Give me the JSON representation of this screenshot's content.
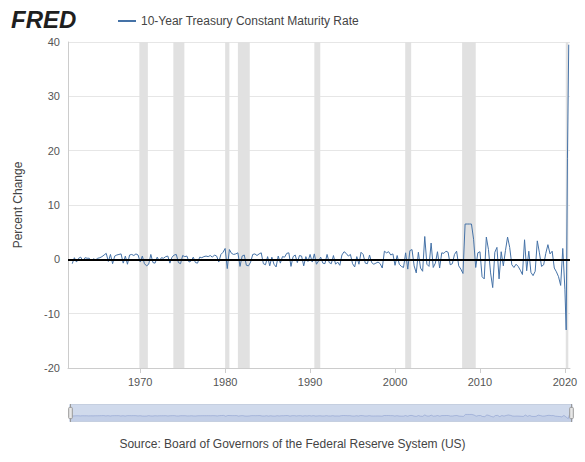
{
  "chart_data": {
    "type": "line",
    "title": "FRED",
    "source": "Source: Board of Governors of the Federal Reserve System (US)",
    "ylabel": "Percent Change",
    "series": [
      {
        "name": "10-Year Treasury Constant Maturity Rate",
        "color": "#4572a7",
        "x": [
          1962,
          1962.25,
          1962.5,
          1962.75,
          1963,
          1963.25,
          1963.5,
          1963.75,
          1964,
          1964.25,
          1964.5,
          1964.75,
          1965,
          1965.25,
          1965.5,
          1965.75,
          1966,
          1966.25,
          1966.5,
          1966.75,
          1967,
          1967.25,
          1967.5,
          1967.75,
          1968,
          1968.25,
          1968.5,
          1968.75,
          1969,
          1969.25,
          1969.5,
          1969.75,
          1970,
          1970.25,
          1970.5,
          1970.75,
          1971,
          1971.25,
          1971.5,
          1971.75,
          1972,
          1972.25,
          1972.5,
          1972.75,
          1973,
          1973.25,
          1973.5,
          1973.75,
          1974,
          1974.25,
          1974.5,
          1974.75,
          1975,
          1975.25,
          1975.5,
          1975.75,
          1976,
          1976.25,
          1976.5,
          1976.75,
          1977,
          1977.25,
          1977.5,
          1977.75,
          1978,
          1978.25,
          1978.5,
          1978.75,
          1979,
          1979.25,
          1979.5,
          1979.75,
          1980,
          1980.25,
          1980.5,
          1980.75,
          1981,
          1981.25,
          1981.5,
          1981.75,
          1982,
          1982.25,
          1982.5,
          1982.75,
          1983,
          1983.25,
          1983.5,
          1983.75,
          1984,
          1984.25,
          1984.5,
          1984.75,
          1985,
          1985.25,
          1985.5,
          1985.75,
          1986,
          1986.25,
          1986.5,
          1986.75,
          1987,
          1987.25,
          1987.5,
          1987.75,
          1988,
          1988.25,
          1988.5,
          1988.75,
          1989,
          1989.25,
          1989.5,
          1989.75,
          1990,
          1990.25,
          1990.5,
          1990.75,
          1991,
          1991.25,
          1991.5,
          1991.75,
          1992,
          1992.25,
          1992.5,
          1992.75,
          1993,
          1993.25,
          1993.5,
          1993.75,
          1994,
          1994.25,
          1994.5,
          1994.75,
          1995,
          1995.25,
          1995.5,
          1995.75,
          1996,
          1996.25,
          1996.5,
          1996.75,
          1997,
          1997.25,
          1997.5,
          1997.75,
          1998,
          1998.25,
          1998.5,
          1998.75,
          1999,
          1999.25,
          1999.5,
          1999.75,
          2000,
          2000.25,
          2000.5,
          2000.75,
          2001,
          2001.25,
          2001.5,
          2001.75,
          2002,
          2002.25,
          2002.5,
          2002.75,
          2003,
          2003.25,
          2003.5,
          2003.75,
          2004,
          2004.25,
          2004.5,
          2004.75,
          2005,
          2005.25,
          2005.5,
          2005.75,
          2006,
          2006.25,
          2006.5,
          2006.75,
          2007,
          2007.25,
          2007.5,
          2007.75,
          2008,
          2008.25,
          2008.5,
          2008.75,
          2009,
          2009.25,
          2009.5,
          2009.75,
          2010,
          2010.25,
          2010.5,
          2010.75,
          2011,
          2011.25,
          2011.5,
          2011.75,
          2012,
          2012.25,
          2012.5,
          2012.75,
          2013,
          2013.25,
          2013.5,
          2013.75,
          2014,
          2014.25,
          2014.5,
          2014.75,
          2015,
          2015.25,
          2015.5,
          2015.75,
          2016,
          2016.25,
          2016.5,
          2016.75,
          2017,
          2017.25,
          2017.5,
          2017.75,
          2018,
          2018.25,
          2018.5,
          2018.75,
          2019,
          2019.25,
          2019.5,
          2019.75,
          2020,
          2020.15,
          2020.3,
          2020.45
        ],
        "values": [
          -0.8,
          0.3,
          -0.5,
          0.2,
          0.4,
          -0.3,
          0.3,
          0.2,
          0.2,
          -0.2,
          0.1,
          -0.1,
          0.2,
          0.3,
          0.5,
          0.8,
          1.1,
          -0.4,
          0.9,
          -0.8,
          0.6,
          0.8,
          0.9,
          1.0,
          -0.7,
          0.6,
          -0.9,
          0.8,
          0.9,
          0.7,
          1.0,
          0.8,
          -0.5,
          0.6,
          -0.8,
          -1.2,
          -0.9,
          0.9,
          -0.6,
          -0.7,
          0.4,
          -0.3,
          0.3,
          0.2,
          0.5,
          0.6,
          -0.7,
          0.4,
          0.8,
          0.9,
          -0.6,
          -0.8,
          0.7,
          0.5,
          0.6,
          -0.5,
          -0.3,
          0.4,
          -0.6,
          -0.7,
          0.4,
          0.3,
          0.5,
          0.6,
          0.5,
          0.7,
          0.4,
          0.8,
          0.6,
          -0.5,
          0.9,
          1.3,
          2.0,
          -1.7,
          1.8,
          1.1,
          0.9,
          1.0,
          1.2,
          -1.3,
          0.6,
          0.8,
          -1.1,
          -1.2,
          -0.5,
          0.9,
          1.0,
          0.7,
          1.0,
          1.2,
          -0.8,
          -1.0,
          0.5,
          -1.2,
          0.4,
          -0.9,
          -1.4,
          0.6,
          -0.7,
          0.5,
          0.4,
          1.1,
          1.2,
          -1.3,
          0.5,
          0.8,
          -0.6,
          0.7,
          0.6,
          -1.2,
          0.5,
          -0.4,
          0.9,
          -0.5,
          1.0,
          -0.9,
          -0.3,
          0.4,
          -0.7,
          -0.8,
          0.9,
          -0.6,
          -0.8,
          0.7,
          -0.9,
          -0.5,
          -1.1,
          0.8,
          1.4,
          1.1,
          0.6,
          0.9,
          -0.8,
          -1.4,
          0.5,
          -0.9,
          1.3,
          0.9,
          -0.7,
          -0.8,
          0.8,
          -0.6,
          -0.9,
          -0.7,
          -0.5,
          -0.8,
          -1.6,
          1.5,
          1.2,
          1.4,
          0.8,
          1.0,
          -1.1,
          0.7,
          -0.9,
          -1.3,
          -1.5,
          1.2,
          -1.8,
          1.6,
          1.8,
          -1.2,
          -2.5,
          1.3,
          -1.6,
          -2.2,
          4.2,
          -0.9,
          -1.3,
          3.0,
          -1.5,
          -0.7,
          1.4,
          -1.6,
          1.2,
          1.1,
          1.5,
          1.3,
          -1.0,
          -0.8,
          0.9,
          1.5,
          -1.2,
          -1.8,
          -2.6,
          6.5,
          6.5,
          6.5,
          6.5,
          3.7,
          -1.5,
          1.2,
          1.4,
          -3.2,
          -3.6,
          4.1,
          1.8,
          -2.5,
          -5.2,
          1.3,
          2.2,
          -3.6,
          1.4,
          -1.2,
          1.6,
          4.1,
          2.2,
          -1.0,
          -1.5,
          -0.9,
          -1.3,
          -2.0,
          -2.8,
          3.6,
          -2.1,
          1.5,
          -2.4,
          -3.0,
          -2.2,
          3.4,
          1.2,
          -1.3,
          -1.0,
          1.1,
          2.7,
          1.0,
          1.5,
          -1.6,
          -2.3,
          -3.2,
          -4.8,
          2.0,
          -5.5,
          -13.0,
          18.5,
          39.5
        ]
      }
    ],
    "recessions": [
      [
        1969.9,
        1970.9
      ],
      [
        1973.9,
        1975.2
      ],
      [
        1980.0,
        1980.5
      ],
      [
        1981.5,
        1982.9
      ],
      [
        1990.5,
        1991.2
      ],
      [
        2001.2,
        2001.9
      ],
      [
        2007.9,
        2009.5
      ],
      [
        2020.1,
        2020.4
      ]
    ],
    "xlim": [
      1961.5,
      2020.6
    ],
    "xticks": [
      1970,
      1980,
      1990,
      2000,
      2010,
      2020
    ],
    "ylim": [
      -20,
      40
    ],
    "yticks": [
      -20,
      -10,
      0,
      10,
      20,
      30,
      40
    ],
    "grid": true
  }
}
